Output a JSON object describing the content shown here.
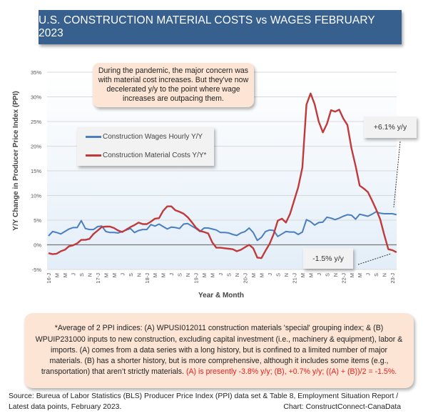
{
  "title": "U.S. CONSTRUCTION MATERIAL COSTS vs WAGES  FEBRUARY 2023",
  "note": "During the pandemic, the major concern was with material cost increases. But they've now decelerated y/y to the point where wage increases are outpacing them.",
  "callouts": {
    "wages": "+6.1% y/y",
    "materials": "-1.5% y/y"
  },
  "footnote": {
    "text": "*Average of 2 PPI indices: (A) WPUSI012011 construction materials 'special' grouping index; & (B) WPUIP231000 inputs to new construction, excluding capital investment (i.e., machinery & equipment), labor & imports. (A) comes from a data series with a long history, but is confined to a limited number of major materials. (B) has a shorter history, but is more comprehensive, although it includes some items (e.g., transportation) that aren’t strictly materials.",
    "highlight": "(A) is presently -3.8% y/y; (B), +0.7% y/y; ((A) + (B))/2 = -1.5%."
  },
  "source": {
    "line1": "Source: Bureua of Labor Statistics (BLS) Producer Price Index (PPI) data set & Table 8, Employment Situation Report /",
    "line2": "Latest data points, February 2023.",
    "credit": "Chart: ConstructConnect-CanaData"
  },
  "colors": {
    "title_bg": "#37608f",
    "wages": "#4a7ebf",
    "materials": "#c0393b",
    "note_bg": "#fce5d5",
    "highlight": "#ee1c1c"
  },
  "chart_data": {
    "type": "line",
    "title": "U.S. CONSTRUCTION MATERIAL COSTS vs WAGES  FEBRUARY 2023",
    "xlabel": "Year & Month",
    "ylabel": "Y/Y Change in Producer Price Index (PPI)",
    "ylim": [
      -5,
      35
    ],
    "yticks": [
      "-5%",
      "0%",
      "5%",
      "10%",
      "15%",
      "20%",
      "25%",
      "30%",
      "35%"
    ],
    "grid": "horizontal",
    "legend": "upper-left",
    "x_range": "Jan 2016 – Feb 2023 (monthly)",
    "xtick_labels": [
      "16-J",
      "M",
      "M",
      "J",
      "S",
      "N",
      "17-J",
      "M",
      "M",
      "J",
      "S",
      "N",
      "18-J",
      "M",
      "M",
      "J",
      "S",
      "N",
      "19-J",
      "M",
      "M",
      "J",
      "S",
      "N",
      "20-J",
      "M",
      "M",
      "J",
      "S",
      "N",
      "21-J",
      "M",
      "M",
      "J",
      "S",
      "N",
      "22-J",
      "M",
      "M",
      "J",
      "S",
      "N",
      "23-J"
    ],
    "series": [
      {
        "name": "Construction Wages Hourly Y/Y",
        "values": [
          1.8,
          2.7,
          2.5,
          2.2,
          2.7,
          3.2,
          3.5,
          3.5,
          4.9,
          3.3,
          3.1,
          3.1,
          3.7,
          3.8,
          2.7,
          2.5,
          2.5,
          2.4,
          2.7,
          3.0,
          3.3,
          2.5,
          2.9,
          3.1,
          3.1,
          4.1,
          3.8,
          4.2,
          3.7,
          3.2,
          3.6,
          3.5,
          3.3,
          4.2,
          4.3,
          3.8,
          3.3,
          2.7,
          3.4,
          3.4,
          3.2,
          3.0,
          2.5,
          2.5,
          2.4,
          2.1,
          1.9,
          2.4,
          2.7,
          3.4,
          2.5,
          0.9,
          1.5,
          2.7,
          3.0,
          2.9,
          1.7,
          2.2,
          2.7,
          2.6,
          2.6,
          2.1,
          2.6,
          5.1,
          4.7,
          4.0,
          4.5,
          4.6,
          5.6,
          5.4,
          5.1,
          5.4,
          5.8,
          6.1,
          6.0,
          5.2,
          6.2,
          6.0,
          5.8,
          6.2,
          6.7,
          6.4,
          6.3,
          6.3,
          6.3,
          6.1
        ]
      },
      {
        "name": "Construction Material Costs Y/Y*",
        "values": [
          -1.7,
          -1.9,
          -1.8,
          -1.3,
          -1.0,
          -0.3,
          -0.1,
          0.3,
          1.0,
          1.0,
          1.2,
          2.2,
          2.9,
          3.6,
          3.7,
          3.7,
          3.4,
          2.9,
          2.6,
          3.1,
          3.6,
          4.0,
          4.5,
          4.2,
          4.2,
          4.7,
          5.3,
          5.4,
          6.9,
          7.8,
          7.8,
          7.0,
          6.7,
          6.3,
          5.6,
          4.6,
          3.5,
          2.8,
          2.6,
          2.3,
          0.5,
          -0.6,
          -0.6,
          -0.7,
          -0.8,
          -0.9,
          -1.3,
          -1.0,
          -0.5,
          0.0,
          -0.7,
          -2.6,
          -2.7,
          -1.2,
          0.2,
          2.2,
          4.9,
          5.3,
          4.5,
          6.3,
          9.0,
          11.7,
          15.7,
          28.4,
          30.7,
          28.5,
          25.0,
          22.8,
          24.5,
          27.3,
          27.0,
          27.4,
          25.6,
          24.3,
          19.5,
          16.0,
          12.0,
          11.4,
          10.7,
          9.0,
          7.2,
          5.2,
          2.0,
          -0.9,
          -1.1,
          -1.5
        ]
      }
    ]
  }
}
